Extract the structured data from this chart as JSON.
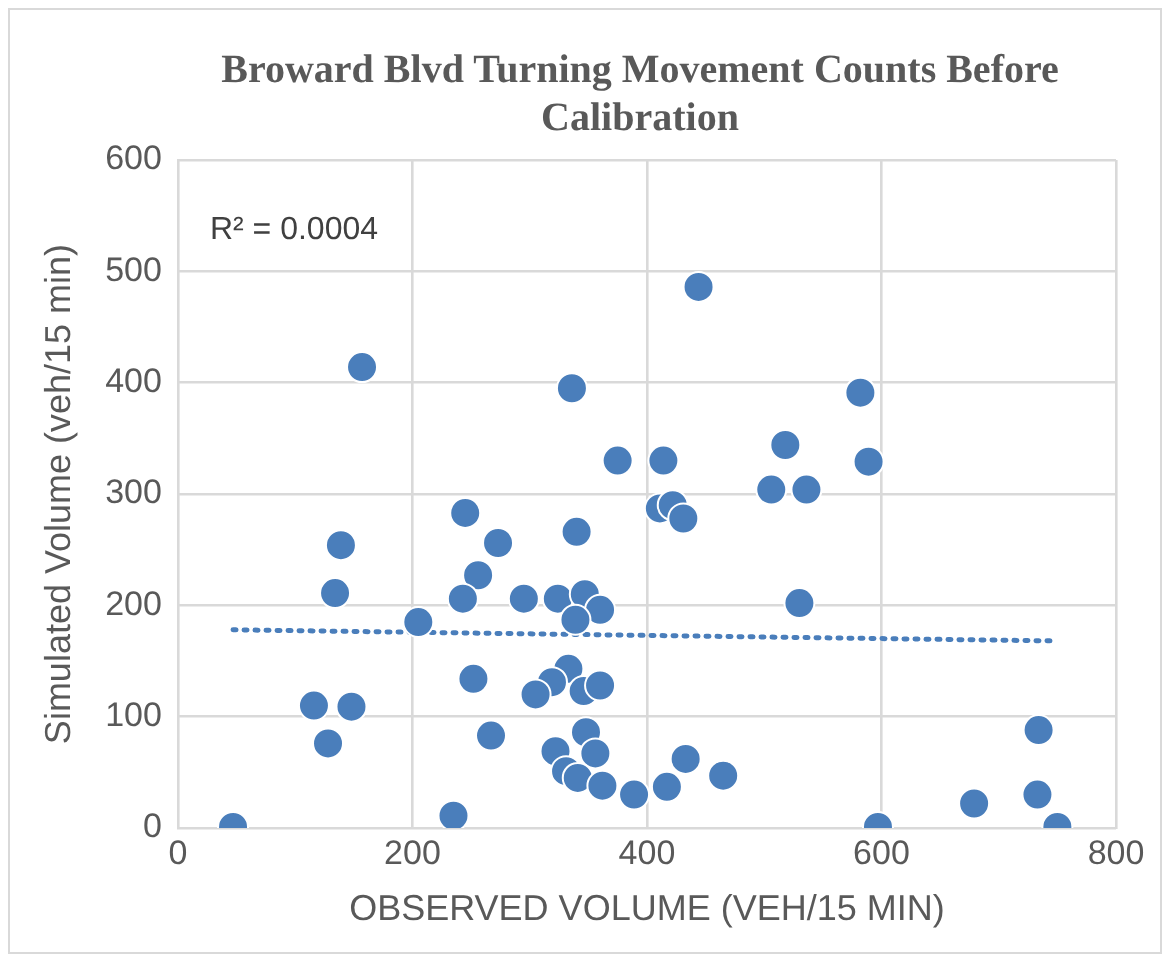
{
  "chart_data": {
    "type": "scatter",
    "title": "Broward Blvd Turning Movement Counts Before Calibration",
    "xlabel": "OBSERVED VOLUME (VEH/15 MIN)",
    "ylabel": "Simulated Volume (veh/15 min)",
    "xlim": [
      0,
      800
    ],
    "xticks": [
      0,
      200,
      400,
      600,
      800
    ],
    "ylim": [
      0,
      600
    ],
    "yticks": [
      0,
      100,
      200,
      300,
      400,
      500,
      600
    ],
    "grid": true,
    "marker": "circle",
    "annotations": [
      "R² = 0.0004"
    ],
    "series": [
      {
        "color": "#4a7ebb",
        "x": [
          47,
          157,
          336,
          375,
          414,
          411,
          245,
          340,
          139,
          273,
          256,
          134,
          243,
          295,
          324,
          347,
          360,
          339,
          205,
          252,
          333,
          319,
          305,
          346,
          360,
          116,
          148,
          128,
          267,
          348,
          322,
          356,
          331,
          341,
          362,
          389,
          235,
          417,
          444,
          582,
          518,
          589,
          506,
          536,
          422,
          431,
          530,
          433,
          465,
          597,
          679,
          734,
          733,
          750
        ],
        "values": [
          1,
          414,
          395,
          330,
          330,
          287,
          283,
          266,
          254,
          256,
          227,
          211,
          206,
          206,
          206,
          210,
          196,
          187,
          185,
          134,
          143,
          131,
          120,
          123,
          128,
          110,
          109,
          76,
          83,
          86,
          69,
          67,
          51,
          45,
          38,
          30,
          11,
          37,
          486,
          391,
          344,
          329,
          304,
          304,
          290,
          278,
          202,
          62,
          47,
          1,
          22,
          88,
          30,
          1
        ]
      },
      {
        "type": "line",
        "color": "#4a7ebb",
        "line_style": "dotted",
        "marker": "none",
        "x": [
          47,
          750
        ],
        "values": [
          178,
          168
        ]
      }
    ]
  }
}
